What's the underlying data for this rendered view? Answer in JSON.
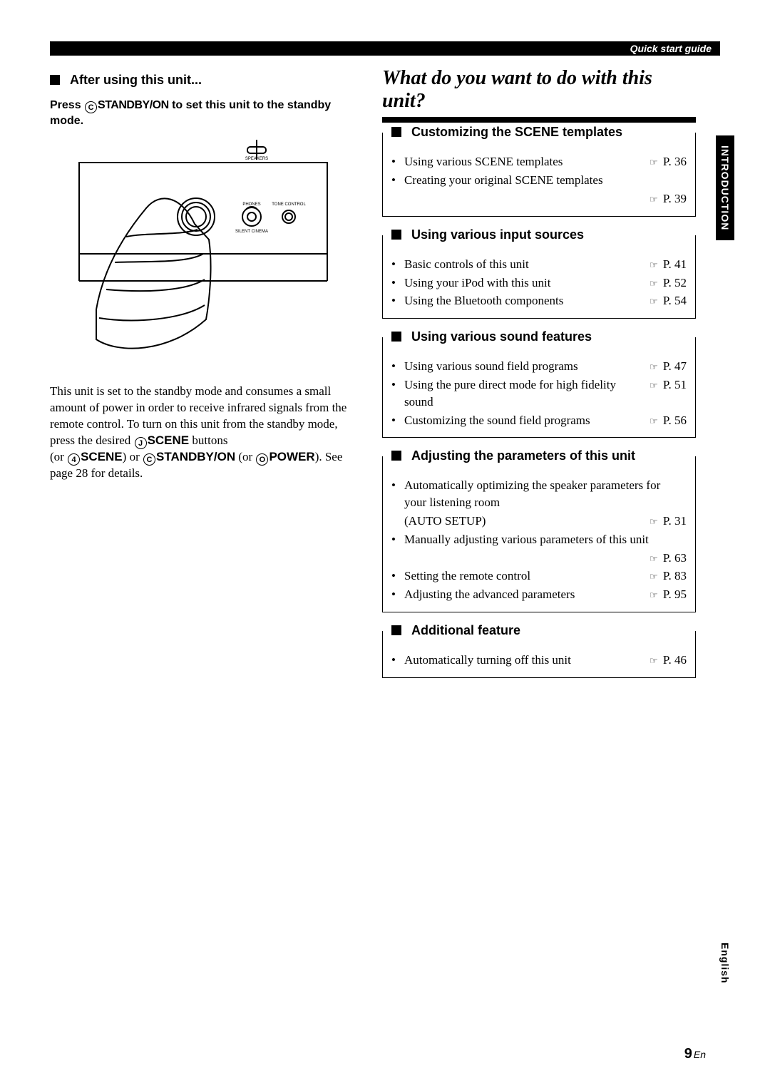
{
  "header": {
    "quick_start": "Quick start guide"
  },
  "side_tabs": {
    "introduction": "INTRODUCTION",
    "english": "English"
  },
  "left": {
    "heading": "After using this unit...",
    "press_prefix": "Press ",
    "press_button_letter": "C",
    "press_button_text": "STANDBY/ON",
    "press_suffix": " to set this unit to the standby mode.",
    "body_1": "This unit is set to the standby mode and consumes a small amount of power in order to receive infrared signals from the remote control. To turn on this unit from the standby mode, press the desired ",
    "scene_letter_j": "J",
    "scene_bold": "SCENE",
    "body_1b": " buttons",
    "body_2_open": "(or ",
    "scene_letter_4": "4",
    "body_2_or1": ") or ",
    "standby_letter_c": "C",
    "standby_text": "STANDBY/ON",
    "body_2_or2": " (or ",
    "power_letter_15": "O",
    "power_text": "POWER",
    "body_2_close": "). See page 28 for details.",
    "diagram_labels": {
      "speakers": "SPEAKERS",
      "phones": "PHONES",
      "tone": "TONE CONTROL",
      "silent": "SILENT CINEMA"
    }
  },
  "right": {
    "title": "What do you want to do with this unit?",
    "sections": [
      {
        "heading": "Customizing the SCENE templates",
        "items": [
          {
            "text": "Using various SCENE templates",
            "page": "P. 36"
          },
          {
            "text": "Creating your original SCENE templates",
            "page": "P. 39",
            "page_below": true
          }
        ]
      },
      {
        "heading": "Using various input sources",
        "items": [
          {
            "text": "Basic controls of this unit",
            "page": "P. 41"
          },
          {
            "text": "Using your iPod with this unit",
            "page": "P. 52"
          },
          {
            "text": "Using the Bluetooth components",
            "page": "P. 54"
          }
        ]
      },
      {
        "heading": "Using various sound features",
        "items": [
          {
            "text": "Using various sound field programs",
            "page": "P. 47"
          },
          {
            "text": "Using the pure direct mode for high fidelity sound",
            "page": "P. 51"
          },
          {
            "text": "Customizing the sound field programs",
            "page": "P. 56"
          }
        ]
      },
      {
        "heading": "Adjusting the parameters of this unit",
        "items": [
          {
            "text": "Automatically optimizing the speaker parameters for your listening room",
            "note": "(AUTO SETUP)",
            "page": "P. 31"
          },
          {
            "text": "Manually adjusting various parameters of this unit",
            "page": "P. 63",
            "page_below": true
          },
          {
            "text": "Setting the remote control",
            "page": "P. 83"
          },
          {
            "text": "Adjusting the advanced parameters",
            "page": "P. 95"
          }
        ]
      },
      {
        "heading": "Additional feature",
        "items": [
          {
            "text": "Automatically turning off this unit",
            "page": "P. 46"
          }
        ]
      }
    ]
  },
  "page": {
    "number": "9",
    "lang": "En"
  },
  "style": {
    "pointer_glyph": "☞"
  }
}
